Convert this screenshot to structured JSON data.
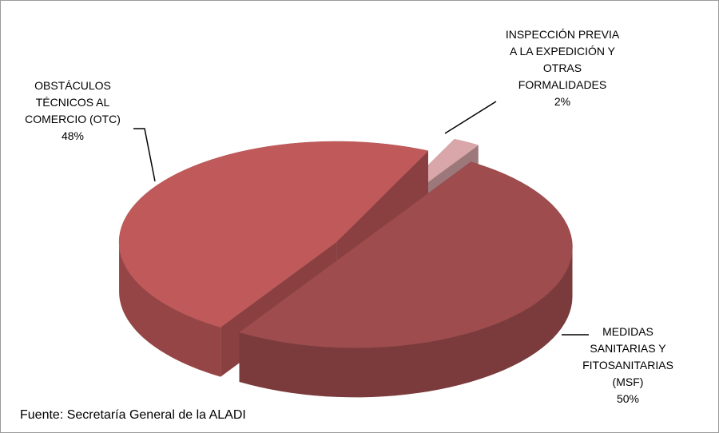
{
  "chart_data": {
    "type": "pie",
    "categories": [
      "OBSTÁCULOS\nTÉCNICOS AL\nCOMERCIO (OTC)",
      "INSPECCIÓN PREVIA\nA LA EXPEDICIÓN Y\nOTRAS\nFORMALIDADES",
      "MEDIDAS\nSANITARIAS Y\nFITOSANITARIAS\n(MSF)"
    ],
    "values": [
      48,
      2,
      50
    ],
    "value_labels": [
      "48%",
      "2%",
      "50%"
    ],
    "colors": [
      "#c0595a",
      "#d9a6a9",
      "#9e4c4d"
    ],
    "source": "Fuente: Secretaría General de la ALADI"
  }
}
